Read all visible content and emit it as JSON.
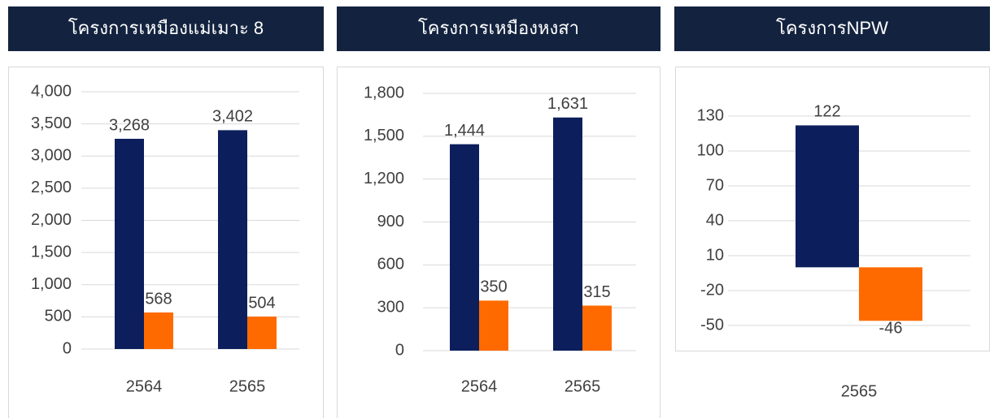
{
  "chart_data": [
    {
      "type": "bar",
      "title": "โครงการเหมืองแม่เมาะ 8",
      "categories": [
        "2564",
        "2565"
      ],
      "series": [
        {
          "color": "#0c1f5c",
          "values": [
            3268,
            3402
          ],
          "value_labels": [
            "3,268",
            "3,402"
          ]
        },
        {
          "color": "#ff6a00",
          "values": [
            568,
            504
          ]
        }
      ],
      "ylim": [
        0,
        4000
      ],
      "yticks": [
        0,
        500,
        {
          "value": 1000,
          "label": "1,000"
        },
        {
          "value": 1500,
          "label": "1,500"
        },
        {
          "value": 2000,
          "label": "2,000"
        },
        {
          "value": 2500,
          "label": "2,500"
        },
        {
          "value": 3000,
          "label": "3,000"
        },
        {
          "value": 3500,
          "label": "3,500"
        },
        {
          "value": 4000,
          "label": "4,000"
        }
      ],
      "grid": true
    },
    {
      "type": "bar",
      "title": "โครงการเหมืองหงสา",
      "categories": [
        "2564",
        "2565"
      ],
      "series": [
        {
          "color": "#0c1f5c",
          "values": [
            1444,
            1631
          ],
          "value_labels": [
            "1,444",
            "1,631"
          ]
        },
        {
          "color": "#ff6a00",
          "values": [
            350,
            315
          ]
        }
      ],
      "ylim": [
        0,
        1800
      ],
      "yticks": [
        0,
        300,
        600,
        900,
        {
          "value": 1200,
          "label": "1,200"
        },
        {
          "value": 1500,
          "label": "1,500"
        },
        {
          "value": 1800,
          "label": "1,800"
        }
      ],
      "grid": true
    },
    {
      "type": "bar",
      "title": "โครงการNPW",
      "categories": [
        "2565"
      ],
      "series": [
        {
          "color": "#0c1f5c",
          "values": [
            122
          ]
        },
        {
          "color": "#ff6a00",
          "values": [
            -46
          ]
        }
      ],
      "ylim": [
        -50,
        130
      ],
      "yticks": [
        -50,
        -20,
        10,
        40,
        70,
        100,
        130
      ],
      "grid": true
    }
  ]
}
